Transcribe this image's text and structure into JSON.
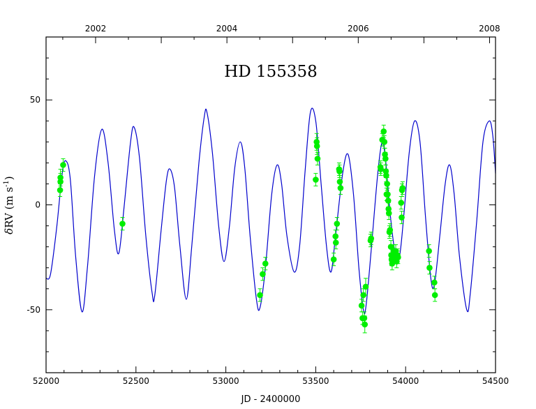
{
  "chart_data": {
    "type": "scatter",
    "title": "HD 155358",
    "xlabel": "JD - 2400000",
    "ylabel_greek": "δ",
    "ylabel_main": "RV (m s",
    "ylabel_exp": "-1",
    "ylabel_close": ")",
    "xlim": [
      52000,
      54500
    ],
    "ylim": [
      -80,
      80
    ],
    "x_ticks": [
      52000,
      52500,
      53000,
      53500,
      54000,
      54500
    ],
    "y_ticks": [
      -50,
      0,
      50
    ],
    "top_axis_ticks": [
      {
        "label": "2002",
        "jd": 52275.5
      },
      {
        "label": "2004",
        "jd": 53005.5
      },
      {
        "label": "2006",
        "jd": 53736.5
      },
      {
        "label": "2008",
        "jd": 54466.5
      }
    ],
    "colors": {
      "model": "#0000cc",
      "points": "#00ee00",
      "axes": "#000000"
    },
    "model_curve": [
      [
        52000,
        -35
      ],
      [
        52025,
        -33
      ],
      [
        52060,
        -10
      ],
      [
        52090,
        15
      ],
      [
        52110,
        21
      ],
      [
        52135,
        12
      ],
      [
        52165,
        -25
      ],
      [
        52200,
        -51
      ],
      [
        52230,
        -30
      ],
      [
        52270,
        14
      ],
      [
        52310,
        36
      ],
      [
        52345,
        20
      ],
      [
        52380,
        -12
      ],
      [
        52405,
        -23
      ],
      [
        52435,
        0
      ],
      [
        52470,
        30
      ],
      [
        52490,
        37
      ],
      [
        52520,
        22
      ],
      [
        52555,
        -15
      ],
      [
        52590,
        -42
      ],
      [
        52605,
        -43
      ],
      [
        52640,
        -12
      ],
      [
        52670,
        12
      ],
      [
        52690,
        17
      ],
      [
        52715,
        8
      ],
      [
        52745,
        -20
      ],
      [
        52780,
        -45
      ],
      [
        52810,
        -20
      ],
      [
        52850,
        20
      ],
      [
        52880,
        42
      ],
      [
        52895,
        44
      ],
      [
        52925,
        25
      ],
      [
        52960,
        -10
      ],
      [
        52990,
        -27
      ],
      [
        53020,
        -10
      ],
      [
        53050,
        18
      ],
      [
        53080,
        30
      ],
      [
        53105,
        18
      ],
      [
        53135,
        -15
      ],
      [
        53170,
        -45
      ],
      [
        53190,
        -49
      ],
      [
        53220,
        -30
      ],
      [
        53255,
        5
      ],
      [
        53285,
        19
      ],
      [
        53310,
        10
      ],
      [
        53340,
        -15
      ],
      [
        53380,
        -32
      ],
      [
        53410,
        -20
      ],
      [
        53440,
        15
      ],
      [
        53470,
        44
      ],
      [
        53500,
        40
      ],
      [
        53530,
        10
      ],
      [
        53560,
        -20
      ],
      [
        53585,
        -32
      ],
      [
        53610,
        -15
      ],
      [
        53650,
        15
      ],
      [
        53680,
        24
      ],
      [
        53710,
        5
      ],
      [
        53740,
        -30
      ],
      [
        53765,
        -50
      ],
      [
        53780,
        -48
      ],
      [
        53810,
        -20
      ],
      [
        53845,
        15
      ],
      [
        53870,
        30
      ],
      [
        53890,
        20
      ],
      [
        53915,
        -5
      ],
      [
        53940,
        -22
      ],
      [
        53965,
        -25
      ],
      [
        53990,
        -5
      ],
      [
        54020,
        25
      ],
      [
        54050,
        40
      ],
      [
        54080,
        30
      ],
      [
        54110,
        -5
      ],
      [
        54140,
        -35
      ],
      [
        54160,
        -38
      ],
      [
        54190,
        -15
      ],
      [
        54220,
        10
      ],
      [
        54245,
        19
      ],
      [
        54270,
        5
      ],
      [
        54300,
        -25
      ],
      [
        54340,
        -50
      ],
      [
        54360,
        -42
      ],
      [
        54395,
        -8
      ],
      [
        54430,
        30
      ],
      [
        54465,
        40
      ],
      [
        54485,
        33
      ],
      [
        54500,
        15
      ]
    ],
    "points": [
      {
        "x": 52080,
        "y": 13,
        "err": 4
      },
      {
        "x": 52080,
        "y": 11,
        "err": 4
      },
      {
        "x": 52078,
        "y": 7,
        "err": 3
      },
      {
        "x": 52095,
        "y": 19,
        "err": 3
      },
      {
        "x": 52425,
        "y": -9,
        "err": 3
      },
      {
        "x": 53190,
        "y": -43,
        "err": 3
      },
      {
        "x": 53205,
        "y": -33,
        "err": 3
      },
      {
        "x": 53220,
        "y": -28,
        "err": 3
      },
      {
        "x": 53500,
        "y": 12,
        "err": 3
      },
      {
        "x": 53505,
        "y": 30,
        "err": 4
      },
      {
        "x": 53507,
        "y": 28,
        "err": 4
      },
      {
        "x": 53510,
        "y": 22,
        "err": 3
      },
      {
        "x": 53600,
        "y": -26,
        "err": 3
      },
      {
        "x": 53610,
        "y": -15,
        "err": 3
      },
      {
        "x": 53612,
        "y": -18,
        "err": 3
      },
      {
        "x": 53618,
        "y": -9,
        "err": 3
      },
      {
        "x": 53630,
        "y": 17,
        "err": 3
      },
      {
        "x": 53632,
        "y": 16,
        "err": 3
      },
      {
        "x": 53634,
        "y": 11,
        "err": 3
      },
      {
        "x": 53638,
        "y": 8,
        "err": 3
      },
      {
        "x": 53755,
        "y": -48,
        "err": 3
      },
      {
        "x": 53760,
        "y": -54,
        "err": 3
      },
      {
        "x": 53765,
        "y": -43,
        "err": 3
      },
      {
        "x": 53770,
        "y": -54,
        "err": 3
      },
      {
        "x": 53773,
        "y": -57,
        "err": 4
      },
      {
        "x": 53778,
        "y": -39,
        "err": 4
      },
      {
        "x": 53805,
        "y": -17,
        "err": 3
      },
      {
        "x": 53808,
        "y": -16,
        "err": 3
      },
      {
        "x": 53860,
        "y": 18,
        "err": 3
      },
      {
        "x": 53862,
        "y": 17,
        "err": 3
      },
      {
        "x": 53870,
        "y": 31,
        "err": 3
      },
      {
        "x": 53878,
        "y": 35,
        "err": 3
      },
      {
        "x": 53882,
        "y": 30,
        "err": 3
      },
      {
        "x": 53885,
        "y": 24,
        "err": 3
      },
      {
        "x": 53888,
        "y": 22,
        "err": 3
      },
      {
        "x": 53890,
        "y": 16,
        "err": 3
      },
      {
        "x": 53892,
        "y": 14,
        "err": 3
      },
      {
        "x": 53894,
        "y": 5,
        "err": 3
      },
      {
        "x": 53897,
        "y": 10,
        "err": 3
      },
      {
        "x": 53900,
        "y": 5,
        "err": 3
      },
      {
        "x": 53903,
        "y": 2,
        "err": 3
      },
      {
        "x": 53905,
        "y": -2,
        "err": 3
      },
      {
        "x": 53907,
        "y": -4,
        "err": 3
      },
      {
        "x": 53910,
        "y": -13,
        "err": 3
      },
      {
        "x": 53913,
        "y": -12,
        "err": 3
      },
      {
        "x": 53918,
        "y": -20,
        "err": 3
      },
      {
        "x": 53920,
        "y": -24,
        "err": 3
      },
      {
        "x": 53922,
        "y": -26,
        "err": 3
      },
      {
        "x": 53925,
        "y": -28,
        "err": 3
      },
      {
        "x": 53930,
        "y": -25,
        "err": 3
      },
      {
        "x": 53935,
        "y": -22,
        "err": 3
      },
      {
        "x": 53940,
        "y": -24,
        "err": 3
      },
      {
        "x": 53945,
        "y": -22,
        "err": 3
      },
      {
        "x": 53950,
        "y": -27,
        "err": 3
      },
      {
        "x": 53955,
        "y": -24,
        "err": 3
      },
      {
        "x": 53958,
        "y": -25,
        "err": 3
      },
      {
        "x": 53975,
        "y": 1,
        "err": 3
      },
      {
        "x": 53978,
        "y": -6,
        "err": 3
      },
      {
        "x": 53980,
        "y": 7,
        "err": 3
      },
      {
        "x": 53983,
        "y": 8,
        "err": 3
      },
      {
        "x": 54130,
        "y": -22,
        "err": 3
      },
      {
        "x": 54133,
        "y": -30,
        "err": 3
      },
      {
        "x": 54160,
        "y": -37,
        "err": 3
      },
      {
        "x": 54163,
        "y": -43,
        "err": 3
      }
    ]
  }
}
